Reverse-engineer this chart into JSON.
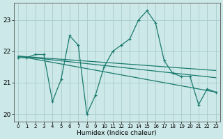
{
  "x": [
    0,
    1,
    2,
    3,
    4,
    5,
    6,
    7,
    8,
    9,
    10,
    11,
    12,
    13,
    14,
    15,
    16,
    17,
    18,
    19,
    20,
    21,
    22,
    23
  ],
  "y_main": [
    21.8,
    21.8,
    21.9,
    21.9,
    20.4,
    21.1,
    22.5,
    22.2,
    20.0,
    20.6,
    21.5,
    22.0,
    22.2,
    22.4,
    23.0,
    23.3,
    22.9,
    21.7,
    21.3,
    21.2,
    21.2,
    20.3,
    20.8,
    20.7
  ],
  "y_trend1": [
    21.85,
    21.82,
    21.79,
    21.76,
    21.73,
    21.7,
    21.67,
    21.64,
    21.61,
    21.58,
    21.55,
    21.52,
    21.49,
    21.46,
    21.43,
    21.4,
    21.37,
    21.34,
    21.31,
    21.28,
    21.25,
    21.22,
    21.19,
    21.16
  ],
  "y_trend2": [
    21.85,
    21.8,
    21.75,
    21.7,
    21.65,
    21.6,
    21.55,
    21.5,
    21.45,
    21.4,
    21.35,
    21.3,
    21.25,
    21.2,
    21.15,
    21.1,
    21.05,
    21.0,
    20.95,
    20.9,
    20.85,
    20.8,
    20.75,
    20.7
  ],
  "y_trend3": [
    21.85,
    21.83,
    21.81,
    21.79,
    21.77,
    21.75,
    21.73,
    21.71,
    21.69,
    21.67,
    21.65,
    21.63,
    21.61,
    21.59,
    21.57,
    21.55,
    21.53,
    21.51,
    21.49,
    21.47,
    21.45,
    21.43,
    21.41,
    21.39
  ],
  "line_color": "#1a7a6e",
  "bg_color": "#cce8e8",
  "grid_color": "#aacccc",
  "xlabel": "Humidex (Indice chaleur)",
  "xlim": [
    -0.5,
    23.5
  ],
  "ylim": [
    19.75,
    23.55
  ],
  "yticks": [
    20,
    21,
    22,
    23
  ],
  "xtick_labels": [
    "0",
    "1",
    "2",
    "3",
    "4",
    "5",
    "6",
    "7",
    "8",
    "9",
    "10",
    "11",
    "12",
    "13",
    "14",
    "15",
    "16",
    "17",
    "18",
    "19",
    "20",
    "21",
    "22",
    "23"
  ]
}
